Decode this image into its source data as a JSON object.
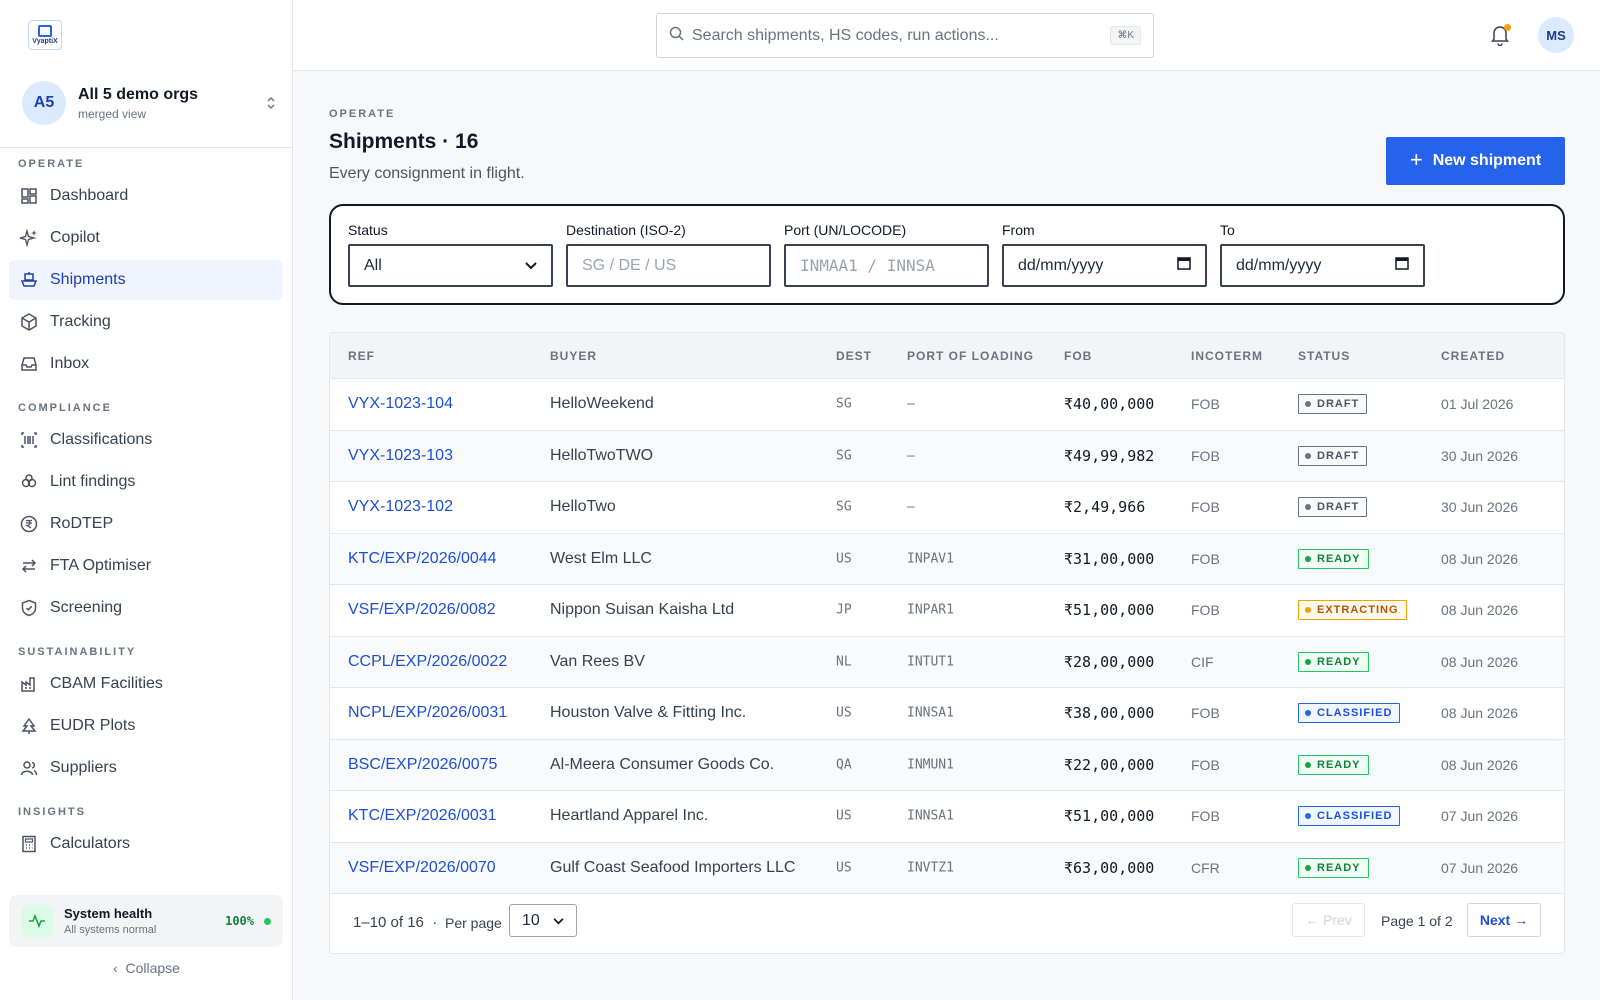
{
  "brand": {
    "logo_text": "VyaptiX"
  },
  "org": {
    "initials": "A5",
    "name": "All 5 demo orgs",
    "sub": "merged view"
  },
  "nav": [
    {
      "section": "OPERATE",
      "items": [
        {
          "label": "Dashboard",
          "icon": "dashboard-icon",
          "active": false
        },
        {
          "label": "Copilot",
          "icon": "sparkle-icon",
          "active": false
        },
        {
          "label": "Shipments",
          "icon": "ship-icon",
          "active": true
        },
        {
          "label": "Tracking",
          "icon": "package-icon",
          "active": false
        },
        {
          "label": "Inbox",
          "icon": "inbox-icon",
          "active": false
        }
      ]
    },
    {
      "section": "COMPLIANCE",
      "items": [
        {
          "label": "Classifications",
          "icon": "barcode-icon",
          "active": false
        },
        {
          "label": "Lint findings",
          "icon": "bug-icon",
          "active": false
        },
        {
          "label": "RoDTEP",
          "icon": "rupee-coin-icon",
          "active": false
        },
        {
          "label": "FTA Optimiser",
          "icon": "arrows-swap-icon",
          "active": false
        },
        {
          "label": "Screening",
          "icon": "shield-icon",
          "active": false
        }
      ]
    },
    {
      "section": "SUSTAINABILITY",
      "items": [
        {
          "label": "CBAM Facilities",
          "icon": "factory-icon",
          "active": false
        },
        {
          "label": "EUDR Plots",
          "icon": "tree-icon",
          "active": false
        },
        {
          "label": "Suppliers",
          "icon": "users-icon",
          "active": false
        }
      ]
    },
    {
      "section": "INSIGHTS",
      "items": [
        {
          "label": "Calculators",
          "icon": "calculator-icon",
          "active": false
        }
      ]
    }
  ],
  "health": {
    "title": "System health",
    "sub": "All systems normal",
    "pct": "100%"
  },
  "collapse_label": "Collapse",
  "search": {
    "placeholder": "Search shipments, HS codes, run actions...",
    "shortcut": "⌘K"
  },
  "user": {
    "initials": "MS"
  },
  "header": {
    "eyebrow": "OPERATE",
    "title": "Shipments · 16",
    "subtitle": "Every consignment in flight.",
    "new_button": "New shipment"
  },
  "filters": {
    "status": {
      "label": "Status",
      "value": "All"
    },
    "destination": {
      "label": "Destination (ISO-2)",
      "placeholder": "SG / DE / US"
    },
    "port": {
      "label": "Port (UN/LOCODE)",
      "placeholder": "INMAA1 / INNSA"
    },
    "from": {
      "label": "From",
      "placeholder": "dd/mm/yyyy"
    },
    "to": {
      "label": "To",
      "placeholder": "dd/mm/yyyy"
    }
  },
  "table": {
    "columns": [
      "REF",
      "BUYER",
      "DEST",
      "PORT OF LOADING",
      "FOB",
      "INCOTERM",
      "STATUS",
      "CREATED"
    ],
    "rows": [
      {
        "ref": "VYX-1023-104",
        "buyer": "HelloWeekend",
        "dest": "SG",
        "port": "—",
        "fob": "₹40,00,000",
        "incoterm": "FOB",
        "status": "DRAFT",
        "created": "01 Jul 2026"
      },
      {
        "ref": "VYX-1023-103",
        "buyer": "HelloTwoTWO",
        "dest": "SG",
        "port": "—",
        "fob": "₹49,99,982",
        "incoterm": "FOB",
        "status": "DRAFT",
        "created": "30 Jun 2026"
      },
      {
        "ref": "VYX-1023-102",
        "buyer": "HelloTwo",
        "dest": "SG",
        "port": "—",
        "fob": "₹2,49,966",
        "incoterm": "FOB",
        "status": "DRAFT",
        "created": "30 Jun 2026"
      },
      {
        "ref": "KTC/EXP/2026/0044",
        "buyer": "West Elm LLC",
        "dest": "US",
        "port": "INPAV1",
        "fob": "₹31,00,000",
        "incoterm": "FOB",
        "status": "READY",
        "created": "08 Jun 2026"
      },
      {
        "ref": "VSF/EXP/2026/0082",
        "buyer": "Nippon Suisan Kaisha Ltd",
        "dest": "JP",
        "port": "INPAR1",
        "fob": "₹51,00,000",
        "incoterm": "FOB",
        "status": "EXTRACTING",
        "created": "08 Jun 2026"
      },
      {
        "ref": "CCPL/EXP/2026/0022",
        "buyer": "Van Rees BV",
        "dest": "NL",
        "port": "INTUT1",
        "fob": "₹28,00,000",
        "incoterm": "CIF",
        "status": "READY",
        "created": "08 Jun 2026"
      },
      {
        "ref": "NCPL/EXP/2026/0031",
        "buyer": "Houston Valve & Fitting Inc.",
        "dest": "US",
        "port": "INNSA1",
        "fob": "₹38,00,000",
        "incoterm": "FOB",
        "status": "CLASSIFIED",
        "created": "08 Jun 2026"
      },
      {
        "ref": "BSC/EXP/2026/0075",
        "buyer": "Al-Meera Consumer Goods Co.",
        "dest": "QA",
        "port": "INMUN1",
        "fob": "₹22,00,000",
        "incoterm": "FOB",
        "status": "READY",
        "created": "08 Jun 2026"
      },
      {
        "ref": "KTC/EXP/2026/0031",
        "buyer": "Heartland Apparel Inc.",
        "dest": "US",
        "port": "INNSA1",
        "fob": "₹51,00,000",
        "incoterm": "FOB",
        "status": "CLASSIFIED",
        "created": "07 Jun 2026"
      },
      {
        "ref": "VSF/EXP/2026/0070",
        "buyer": "Gulf Coast Seafood Importers LLC",
        "dest": "US",
        "port": "INVTZ1",
        "fob": "₹63,00,000",
        "incoterm": "CFR",
        "status": "READY",
        "created": "07 Jun 2026"
      }
    ]
  },
  "status_colors": {
    "DRAFT": {
      "fg": "#4b5563",
      "border": "#6b7280",
      "bg": "#f9fafb",
      "dot": "#6b7280"
    },
    "READY": {
      "fg": "#15803d",
      "border": "#22c55e",
      "bg": "#f0fdf4",
      "dot": "#16a34a"
    },
    "EXTRACTING": {
      "fg": "#b45309",
      "border": "#f59e0b",
      "bg": "#fffbeb",
      "dot": "#f59e0b"
    },
    "CLASSIFIED": {
      "fg": "#1d4ed8",
      "border": "#2563eb",
      "bg": "#eff6ff",
      "dot": "#2563eb"
    }
  },
  "pagination": {
    "range": "1–10 of 16",
    "per_page_label": "Per page",
    "per_page": "10",
    "prev": "← Prev",
    "page_info": "Page 1 of 2",
    "next": "Next →"
  }
}
